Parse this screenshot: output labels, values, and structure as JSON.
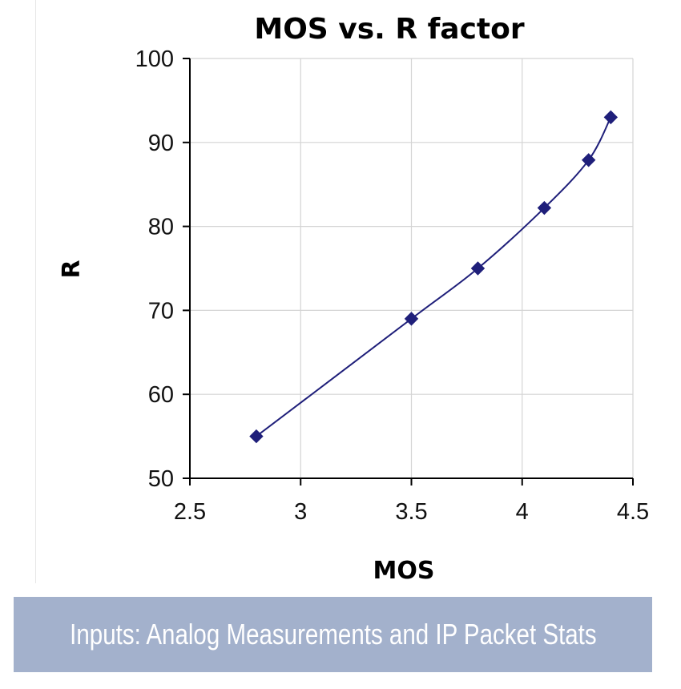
{
  "caption": {
    "text": "Inputs: Analog Measurements and IP Packet Stats",
    "background": "#a3b1cc",
    "color": "#ffffff"
  },
  "chart_data": {
    "type": "line",
    "title": "MOS vs. R factor",
    "xlabel": "MOS",
    "ylabel": "R",
    "xlim": [
      2.5,
      4.5
    ],
    "ylim": [
      50,
      100
    ],
    "xticks": [
      2.5,
      3,
      3.5,
      4,
      4.5
    ],
    "xtick_labels": [
      "2.5",
      "3",
      "3.5",
      "4",
      "4.5"
    ],
    "yticks": [
      50,
      60,
      70,
      80,
      90,
      100
    ],
    "ytick_labels": [
      "50",
      "60",
      "70",
      "80",
      "90",
      "100"
    ],
    "grid": true,
    "smooth": true,
    "marker": "diamond",
    "color": "#1f1f7a",
    "series": [
      {
        "x": [
          2.8,
          3.5,
          3.8,
          4.1,
          4.3,
          4.4
        ],
        "y": [
          55,
          69,
          75,
          82.2,
          87.9,
          93
        ]
      }
    ]
  }
}
